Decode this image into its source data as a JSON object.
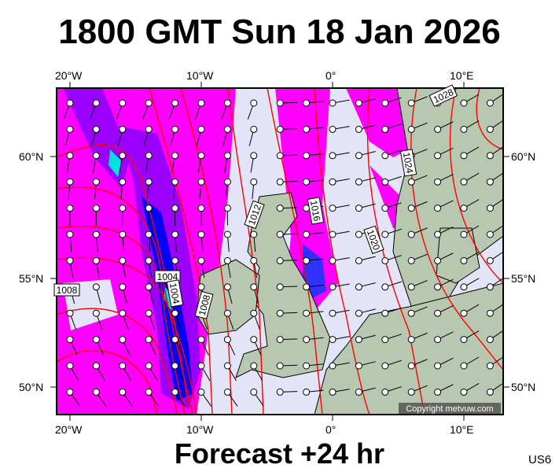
{
  "title": "1800 GMT Sun 18 Jan 2026",
  "footer": "Forecast +24 hr",
  "region_code": "US6",
  "copyright": "Copyright metvuw.com",
  "axes": {
    "lon_top": [
      "20°W",
      "10°W",
      "0°",
      "10°E"
    ],
    "lon_bottom": [
      "20°W",
      "10°W",
      "0°",
      "10°E"
    ],
    "lat_left": [
      "60°N",
      "55°N",
      "50°N"
    ],
    "lat_right": [
      "60°N",
      "55°N",
      "50°N"
    ]
  },
  "isobar_labels": [
    "1028",
    "1024",
    "1020",
    "1016",
    "1012",
    "1008",
    "1008",
    "1004",
    "1004"
  ],
  "colors": {
    "background": "#e4e4f8",
    "precip_light": "#ff00ff",
    "precip_mid": "#9b00ff",
    "precip_heavy": "#0000ff",
    "precip_extreme": "#00e0e0",
    "isobar": "#ff0000",
    "land": "#b8c8b0"
  }
}
